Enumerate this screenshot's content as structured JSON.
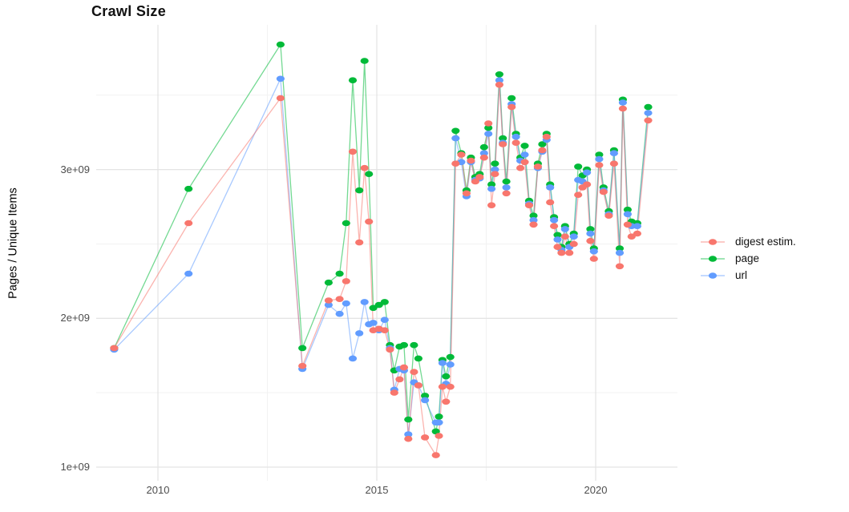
{
  "title": "Crawl Size",
  "ylabel": "Pages / Unique Items",
  "legend": {
    "items": [
      {
        "label": "digest estim.",
        "color": "#F8766D"
      },
      {
        "label": "page",
        "color": "#00BA38"
      },
      {
        "label": "url",
        "color": "#619CFF"
      }
    ]
  },
  "axes": {
    "y_ticks": [
      {
        "label": "1e+09",
        "value": 1
      },
      {
        "label": "2e+09",
        "value": 2
      },
      {
        "label": "3e+09",
        "value": 3
      }
    ],
    "y_minor": [
      1.5,
      2.5,
      3.5
    ],
    "x_ticks": [
      {
        "label": "2010",
        "value": 2010
      },
      {
        "label": "2015",
        "value": 2015
      },
      {
        "label": "2020",
        "value": 2020
      }
    ],
    "x_minor": [
      2012.5,
      2017.5
    ]
  },
  "chart_data": {
    "type": "line",
    "title": "Crawl Size",
    "xlabel": "",
    "ylabel": "Pages / Unique Items",
    "x_unit": "year (decimal, one point per crawl)",
    "value_unit": "1e+09 (billions of pages / unique items)",
    "xlim": [
      2008.6,
      2021.9
    ],
    "ylim": [
      0.91,
      3.98
    ],
    "grid": true,
    "legend_position": "right",
    "x": [
      2009.0,
      2010.7,
      2012.8,
      2013.3,
      2013.9,
      2014.15,
      2014.3,
      2014.45,
      2014.6,
      2014.72,
      2014.82,
      2014.92,
      2015.05,
      2015.18,
      2015.3,
      2015.4,
      2015.52,
      2015.62,
      2015.72,
      2015.85,
      2015.95,
      2016.1,
      2016.35,
      2016.42,
      2016.5,
      2016.58,
      2016.68,
      2016.8,
      2016.93,
      2017.05,
      2017.15,
      2017.25,
      2017.35,
      2017.45,
      2017.55,
      2017.62,
      2017.7,
      2017.8,
      2017.88,
      2017.96,
      2018.08,
      2018.18,
      2018.28,
      2018.38,
      2018.48,
      2018.58,
      2018.68,
      2018.78,
      2018.88,
      2018.96,
      2019.05,
      2019.13,
      2019.22,
      2019.3,
      2019.4,
      2019.5,
      2019.6,
      2019.7,
      2019.8,
      2019.88,
      2019.96,
      2020.08,
      2020.18,
      2020.3,
      2020.42,
      2020.55,
      2020.62,
      2020.73,
      2020.82,
      2020.95,
      2021.2
    ],
    "series": [
      {
        "name": "digest estim.",
        "color": "#F8766D",
        "values": [
          1.8,
          2.64,
          3.48,
          1.68,
          2.12,
          2.13,
          2.25,
          3.12,
          2.51,
          3.01,
          2.65,
          1.92,
          1.93,
          1.92,
          1.79,
          1.5,
          1.59,
          1.67,
          1.19,
          1.64,
          1.55,
          1.2,
          1.08,
          1.21,
          1.54,
          1.44,
          1.54,
          3.04,
          3.1,
          2.84,
          3.06,
          2.92,
          2.95,
          3.08,
          3.31,
          2.76,
          2.97,
          3.57,
          3.17,
          2.84,
          3.42,
          3.18,
          3.01,
          3.05,
          2.76,
          2.63,
          3.02,
          3.13,
          3.22,
          2.78,
          2.62,
          2.48,
          2.44,
          2.55,
          2.44,
          2.5,
          2.83,
          2.88,
          2.9,
          2.52,
          2.4,
          3.03,
          2.85,
          2.69,
          3.04,
          2.35,
          3.41,
          2.63,
          2.55,
          2.57,
          3.33
        ]
      },
      {
        "name": "page",
        "color": "#00BA38",
        "values": [
          1.8,
          2.87,
          3.84,
          1.8,
          2.24,
          2.3,
          2.64,
          3.6,
          2.86,
          3.73,
          2.97,
          2.07,
          2.09,
          2.11,
          1.82,
          1.65,
          1.81,
          1.82,
          1.32,
          1.82,
          1.73,
          1.48,
          1.24,
          1.34,
          1.72,
          1.61,
          1.74,
          3.26,
          3.11,
          2.86,
          3.08,
          2.95,
          2.97,
          3.15,
          3.28,
          2.9,
          3.04,
          3.64,
          3.21,
          2.92,
          3.48,
          3.24,
          3.08,
          3.16,
          2.79,
          2.69,
          3.04,
          3.17,
          3.24,
          2.9,
          2.68,
          2.56,
          2.48,
          2.62,
          2.5,
          2.57,
          3.02,
          2.96,
          3.0,
          2.6,
          2.47,
          3.1,
          2.88,
          2.72,
          3.13,
          2.47,
          3.47,
          2.73,
          2.65,
          2.64,
          3.42
        ]
      },
      {
        "name": "url",
        "color": "#619CFF",
        "values": [
          1.79,
          2.3,
          3.61,
          1.66,
          2.09,
          2.03,
          2.1,
          1.73,
          1.9,
          2.11,
          1.96,
          1.97,
          1.92,
          1.99,
          1.8,
          1.52,
          1.66,
          1.65,
          1.22,
          1.57,
          1.55,
          1.45,
          1.3,
          1.3,
          1.7,
          1.56,
          1.69,
          3.21,
          3.05,
          2.82,
          3.05,
          2.93,
          2.94,
          3.11,
          3.24,
          2.87,
          3.0,
          3.6,
          3.18,
          2.88,
          3.44,
          3.22,
          3.06,
          3.1,
          2.77,
          2.66,
          3.01,
          3.12,
          3.2,
          2.88,
          2.66,
          2.53,
          2.46,
          2.6,
          2.48,
          2.55,
          2.93,
          2.92,
          2.98,
          2.57,
          2.45,
          3.07,
          2.86,
          2.7,
          3.11,
          2.44,
          3.45,
          2.7,
          2.62,
          2.62,
          3.38
        ]
      }
    ]
  }
}
